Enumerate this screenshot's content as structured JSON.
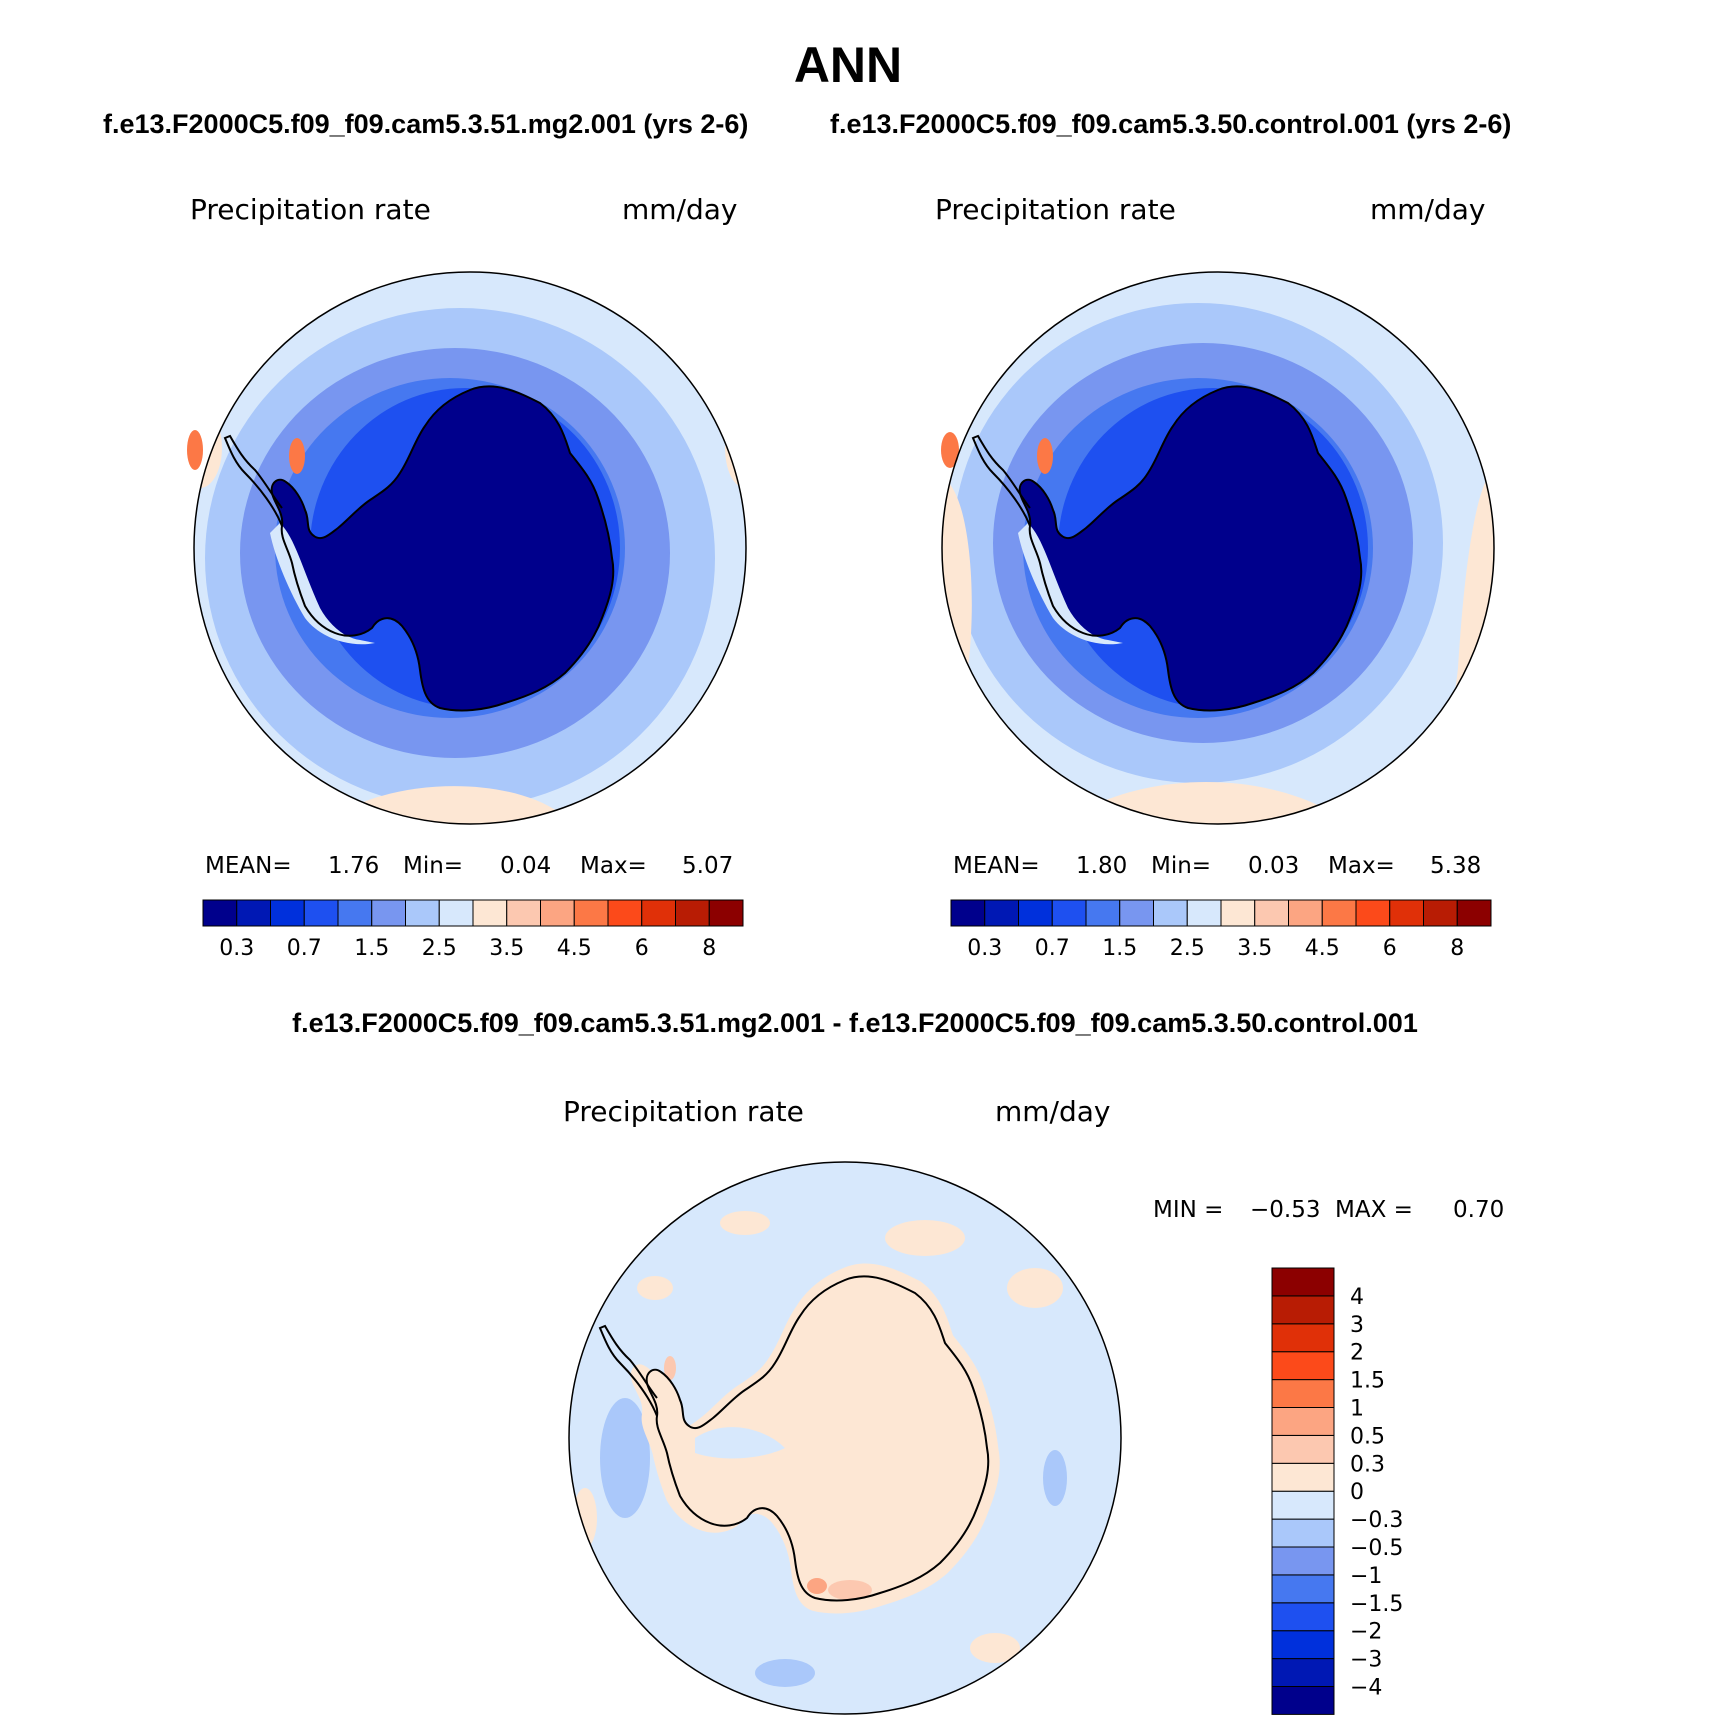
{
  "figure": {
    "title": "ANN",
    "case1_header": "f.e13.F2000C5.f09_f09.cam5.3.51.mg2.001 (yrs 2-6)",
    "case2_header": "f.e13.F2000C5.f09_f09.cam5.3.50.control.001 (yrs 2-6)",
    "diff_header": "f.e13.F2000C5.f09_f09.cam5.3.51.mg2.001 - f.e13.F2000C5.f09_f09.cam5.3.50.control.001"
  },
  "panels": {
    "left": {
      "variable": "Precipitation rate",
      "units": "mm/day",
      "mean_label": "MEAN=",
      "mean": "1.76",
      "min_label": "Min=",
      "min": "0.04",
      "max_label": "Max=",
      "max": "5.07"
    },
    "right": {
      "variable": "Precipitation rate",
      "units": "mm/day",
      "mean_label": "MEAN=",
      "mean": "1.80",
      "min_label": "Min=",
      "min": "0.03",
      "max_label": "Max=",
      "max": "5.38"
    },
    "diff": {
      "variable": "Precipitation rate",
      "units": "mm/day",
      "min_label": "MIN =",
      "min": "−0.53",
      "max_label": "MAX =",
      "max": "0.70"
    }
  },
  "colorbars": {
    "abs": {
      "colors": [
        "#00008c",
        "#0018b4",
        "#0030dc",
        "#1e50f0",
        "#4678f0",
        "#7896f0",
        "#aac8fa",
        "#d7e8fc",
        "#fde7d4",
        "#fcc8b0",
        "#fca582",
        "#fc7846",
        "#fc4a1a",
        "#e03008",
        "#b81c04",
        "#8c0000"
      ],
      "labels": [
        "0.3",
        "0.7",
        "1.5",
        "2.5",
        "3.5",
        "4.5",
        "6",
        "8"
      ]
    },
    "diff": {
      "colors": [
        "#00008c",
        "#0018b4",
        "#0030dc",
        "#1e50f0",
        "#4678f0",
        "#7896f0",
        "#aac8fa",
        "#d7e8fc",
        "#fde7d4",
        "#fcc8b0",
        "#fca582",
        "#fc7846",
        "#fc4a1a",
        "#e03008",
        "#b81c04",
        "#8c0000"
      ],
      "labels": [
        "−4",
        "−3",
        "−2",
        "−1.5",
        "−1",
        "−0.5",
        "−0.3",
        "0",
        "0.3",
        "0.5",
        "1",
        "1.5",
        "2",
        "3",
        "4"
      ]
    }
  }
}
